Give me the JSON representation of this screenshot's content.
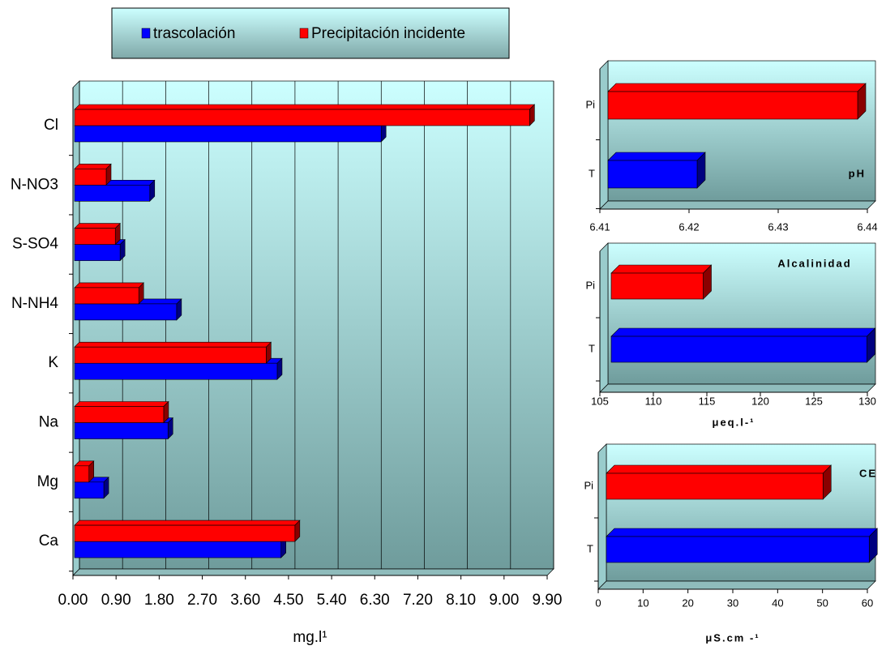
{
  "chart_data": [
    {
      "type": "bar",
      "xlabel": "mg.l¹",
      "categories": [
        "Cl",
        "N-NO3",
        "S-SO4",
        "N-NH4",
        "K",
        "Na",
        "Mg",
        "Ca"
      ],
      "series": [
        {
          "name": "trascolación",
          "color": "#0000ff",
          "values": [
            6.4,
            1.57,
            0.95,
            2.13,
            4.23,
            1.95,
            0.61,
            4.31
          ]
        },
        {
          "name": "Precipitación incidente",
          "color": "#ff0000",
          "values": [
            9.5,
            0.66,
            0.85,
            1.34,
            4.0,
            1.86,
            0.3,
            4.6
          ]
        }
      ],
      "xlim": [
        0,
        9.9
      ],
      "xticks": [
        {
          "value": 0,
          "label": "0.00"
        },
        {
          "value": 0.9,
          "label": "0.90"
        },
        {
          "value": 1.8,
          "label": "1.80"
        },
        {
          "value": 2.7,
          "label": "2.70"
        },
        {
          "value": 3.6,
          "label": "3.60"
        },
        {
          "value": 4.5,
          "label": "4.50"
        },
        {
          "value": 5.4,
          "label": "5.40"
        },
        {
          "value": 6.3,
          "label": "6.30"
        },
        {
          "value": 7.2,
          "label": "7.20"
        },
        {
          "value": 8.1,
          "label": "8.10"
        },
        {
          "value": 9,
          "label": "9.00"
        },
        {
          "value": 9.9,
          "label": "9.90"
        }
      ],
      "grid": true
    },
    {
      "type": "bar",
      "title": "pH",
      "categories": [
        "Pi",
        "T"
      ],
      "values": [
        6.438,
        6.42
      ],
      "colors": [
        "#ff0000",
        "#0000ff"
      ],
      "xlim": [
        6.41,
        6.44
      ],
      "xticks": [
        6.41,
        6.42,
        6.43,
        6.44
      ],
      "grid": false
    },
    {
      "type": "bar",
      "title": "Alcalinidad",
      "xlabel": "μeq.l-¹",
      "categories": [
        "Pi",
        "T"
      ],
      "values": [
        113.6,
        128.9
      ],
      "colors": [
        "#ff0000",
        "#0000ff"
      ],
      "xlim": [
        105,
        130
      ],
      "xticks": [
        105,
        110,
        115,
        120,
        125,
        130
      ],
      "grid": false
    },
    {
      "type": "bar",
      "title": "CE",
      "xlabel": "μS.cm -¹",
      "categories": [
        "Pi",
        "T"
      ],
      "values": [
        48.3,
        58.6
      ],
      "colors": [
        "#ff0000",
        "#0000ff"
      ],
      "xlim": [
        0,
        60
      ],
      "xticks": [
        0,
        10,
        20,
        30,
        40,
        50,
        60
      ],
      "grid": false
    }
  ]
}
